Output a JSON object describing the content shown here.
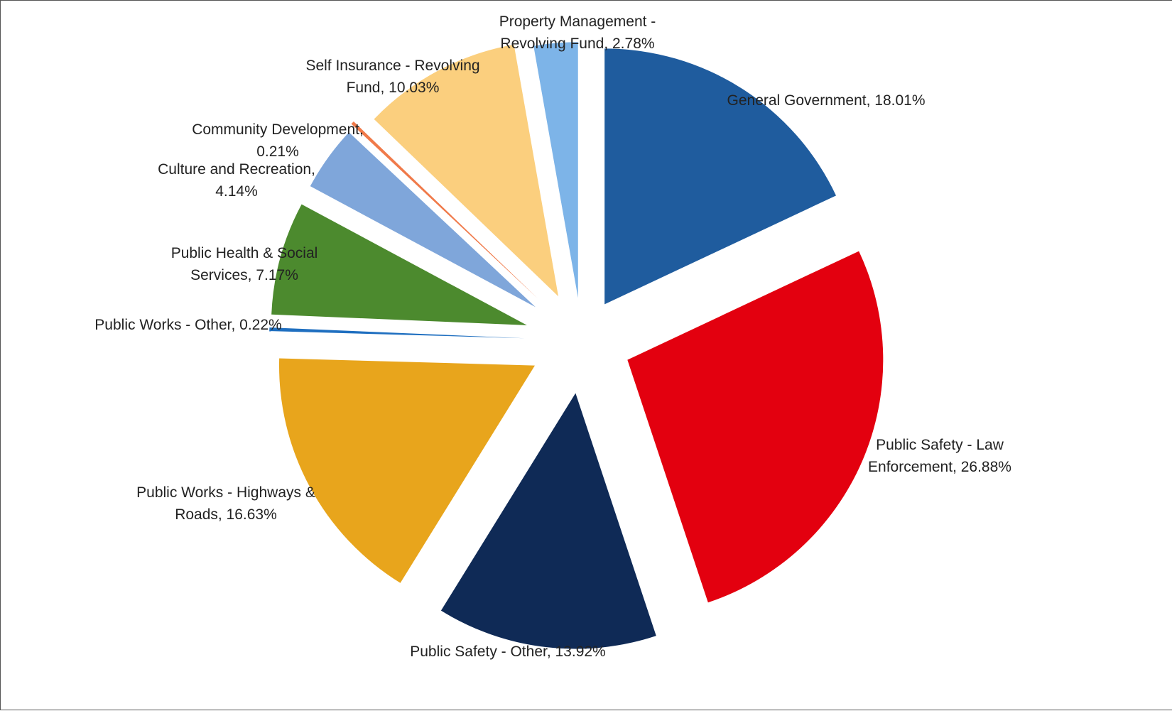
{
  "chart_data": {
    "type": "pie",
    "title": "",
    "exploded": true,
    "start_angle_deg": 0,
    "direction": "clockwise",
    "slices": [
      {
        "name": "General Government",
        "value": 18.01,
        "label_line1": "General Government, 18.01%",
        "label_line2": "",
        "color": "#1F5C9E"
      },
      {
        "name": "Public Safety - Law Enforcement",
        "value": 26.88,
        "label_line1": "Public Safety - Law",
        "label_line2": "Enforcement, 26.88%",
        "color": "#E3000F"
      },
      {
        "name": "Public Safety - Other",
        "value": 13.92,
        "label_line1": "Public Safety - Other, 13.92%",
        "label_line2": "",
        "color": "#0F2A56"
      },
      {
        "name": "Public Works - Highways & Roads",
        "value": 16.63,
        "label_line1": "Public Works - Highways &",
        "label_line2": "Roads, 16.63%",
        "color": "#E8A51C"
      },
      {
        "name": "Public Works - Other",
        "value": 0.22,
        "label_line1": "Public Works - Other, 0.22%",
        "label_line2": "",
        "color": "#1F6FC0"
      },
      {
        "name": "Public Health & Social Services",
        "value": 7.17,
        "label_line1": "Public Health & Social",
        "label_line2": "Services, 7.17%",
        "color": "#4C8A2E"
      },
      {
        "name": "Culture and Recreation",
        "value": 4.14,
        "label_line1": "Culture and Recreation,",
        "label_line2": "4.14%",
        "color": "#7FA6DA"
      },
      {
        "name": "Community Development",
        "value": 0.21,
        "label_line1": "Community Development,",
        "label_line2": "0.21%",
        "color": "#F07A4A"
      },
      {
        "name": "Self Insurance - Revolving Fund",
        "value": 10.03,
        "label_line1": "Self Insurance - Revolving",
        "label_line2": "Fund, 10.03%",
        "color": "#FBCF7E"
      },
      {
        "name": "Property Management - Revolving Fund",
        "value": 2.78,
        "label_line1": "Property Management -",
        "label_line2": "Revolving Fund, 2.78%",
        "color": "#7DB4E8"
      }
    ]
  }
}
